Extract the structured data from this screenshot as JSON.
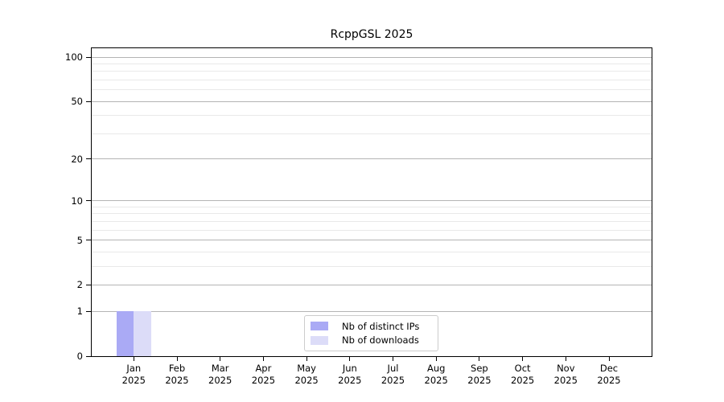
{
  "chart_data": {
    "type": "bar",
    "title": "RcppGSL 2025",
    "x_categories": [
      {
        "label": "Jan",
        "sublabel": "2025"
      },
      {
        "label": "Feb",
        "sublabel": "2025"
      },
      {
        "label": "Mar",
        "sublabel": "2025"
      },
      {
        "label": "Apr",
        "sublabel": "2025"
      },
      {
        "label": "May",
        "sublabel": "2025"
      },
      {
        "label": "Jun",
        "sublabel": "2025"
      },
      {
        "label": "Jul",
        "sublabel": "2025"
      },
      {
        "label": "Aug",
        "sublabel": "2025"
      },
      {
        "label": "Sep",
        "sublabel": "2025"
      },
      {
        "label": "Oct",
        "sublabel": "2025"
      },
      {
        "label": "Nov",
        "sublabel": "2025"
      },
      {
        "label": "Dec",
        "sublabel": "2025"
      }
    ],
    "series": [
      {
        "name": "Nb of distinct IPs",
        "color": "#aaaaf5",
        "values": [
          1,
          0,
          0,
          0,
          0,
          0,
          0,
          0,
          0,
          0,
          0,
          0
        ]
      },
      {
        "name": "Nb of downloads",
        "color": "#dcdcf8",
        "values": [
          1,
          0,
          0,
          0,
          0,
          0,
          0,
          0,
          0,
          0,
          0,
          0
        ]
      }
    ],
    "y_scale": "log1p",
    "y_major_ticks": [
      0,
      1,
      2,
      5,
      10,
      20,
      50,
      100
    ],
    "y_minor_gridlines": [
      3,
      4,
      6,
      7,
      8,
      9,
      30,
      40,
      60,
      70,
      80,
      90
    ],
    "ylim": [
      0,
      114
    ],
    "grid": "on",
    "legend_position": "lower-center"
  },
  "colors": {
    "major_grid": "#b4b4b4",
    "minor_grid": "#e9e9e9",
    "spine": "#000000",
    "background": "#ffffff",
    "legend_border": "#cccccc"
  }
}
